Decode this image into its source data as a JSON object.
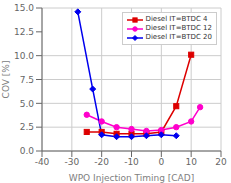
{
  "chart_data": {
    "type": "line",
    "xlabel": "WPO Injection Timing [CAD]",
    "ylabel": "COV [%]",
    "xlim": [
      -40,
      20
    ],
    "ylim": [
      0.0,
      15.0
    ],
    "xticks": [
      -40,
      -30,
      -20,
      -10,
      0,
      10,
      20
    ],
    "yticks": [
      {
        "value": 0,
        "label": "0.0"
      },
      2.5,
      {
        "value": 5,
        "label": "5.0"
      },
      7.5,
      {
        "value": 10,
        "label": "10.0"
      },
      12.5,
      {
        "value": 15,
        "label": "15.0"
      }
    ],
    "grid": true,
    "legend": "upper right",
    "series": [
      {
        "name": "Diesel IT=BTDC 4",
        "color": "#dd0000",
        "marker": "square",
        "line_style": "solid",
        "x": [
          -25,
          -20,
          -15,
          -10,
          -5,
          0,
          5,
          10
        ],
        "values": [
          2.0,
          2.0,
          1.8,
          1.8,
          1.8,
          2.0,
          4.7,
          10.1
        ]
      },
      {
        "name": "Diesel IT=BTDC 12",
        "color": "#ff00cc",
        "marker": "circle",
        "line_style": "solid",
        "x": [
          -25,
          -20,
          -15,
          -10,
          -5,
          0,
          5,
          10,
          13
        ],
        "values": [
          3.8,
          3.1,
          2.5,
          2.3,
          2.1,
          2.2,
          2.5,
          3.1,
          4.6
        ]
      },
      {
        "name": "Diesel IT=BTDC 20",
        "color": "#0000ee",
        "marker": "diamond",
        "line_style": "solid",
        "x": [
          -28,
          -23,
          -20,
          -15,
          -10,
          -5,
          0,
          5
        ],
        "values": [
          14.6,
          6.5,
          1.7,
          1.5,
          1.5,
          1.6,
          1.7,
          1.6
        ]
      }
    ]
  }
}
